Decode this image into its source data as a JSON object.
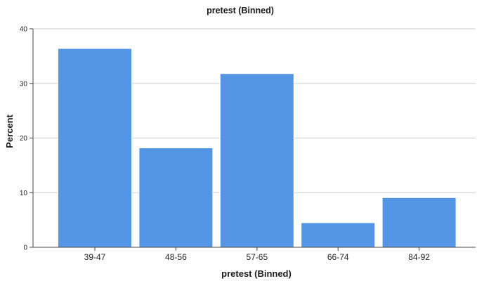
{
  "chart_data": {
    "type": "bar",
    "title": "pretest (Binned)",
    "xlabel": "pretest (Binned)",
    "ylabel": "Percent",
    "categories": [
      "39-47",
      "48-56",
      "57-65",
      "66-74",
      "84-92"
    ],
    "values": [
      36.4,
      18.2,
      31.8,
      4.5,
      9.1
    ],
    "ylim": [
      0,
      40
    ],
    "yticks": [
      "0",
      "10",
      "20",
      "30",
      "40"
    ],
    "grid": true,
    "bar_color": "#5595e5"
  }
}
